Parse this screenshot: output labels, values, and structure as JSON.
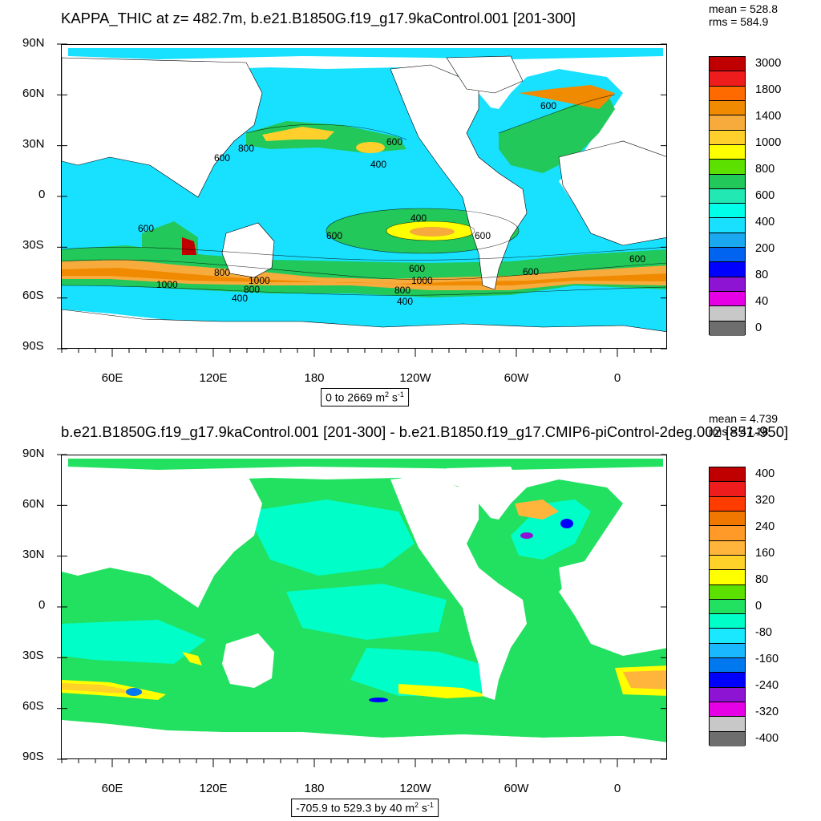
{
  "panels": [
    {
      "title": "KAPPA_THIC at z= 482.7m, b.e21.B1850G.f19_g17.9kaControl.001 [201-300]",
      "stats": [
        "mean = 528.8",
        "rms = 584.9"
      ],
      "range": {
        "text": "0 to 2669 m",
        "sup1": "2",
        "mid": " s",
        "sup2": "-1"
      },
      "colorbar": {
        "labels": [
          "3000",
          "1800",
          "1400",
          "1000",
          "800",
          "600",
          "400",
          "200",
          "80",
          "40",
          "0"
        ],
        "colors": [
          "#c00000",
          "#ee1c1c",
          "#ff6a00",
          "#f08a00",
          "#f7ab3c",
          "#ffd02c",
          "#ffff00",
          "#5ce000",
          "#22c85a",
          "#22e8b4",
          "#00ffe8",
          "#1ae0ff",
          "#1aa8f0",
          "#0064f0",
          "#0000ff",
          "#8c14d2",
          "#e600e6",
          "#c8c8c8",
          "#6e6e6e"
        ]
      },
      "contour_labels": [
        "800",
        "600",
        "400",
        "600",
        "600",
        "400",
        "600",
        "800",
        "1000",
        "800",
        "600",
        "1000",
        "800",
        "600",
        "400",
        "400",
        "1000",
        "600",
        "600",
        "600"
      ],
      "background_class": "#18e0ff"
    },
    {
      "title": "b.e21.B1850G.f19_g17.9kaControl.001 [201-300] - b.e21.B1850.f19_g17.CMIP6-piControl-2deg.002 [851-950]",
      "stats": [
        "mean = 4.739",
        "rms = 47.18"
      ],
      "range": {
        "text": "-705.9 to 529.3 by 40 m",
        "sup1": "2",
        "mid": " s",
        "sup2": "-1"
      },
      "colorbar": {
        "labels": [
          "400",
          "320",
          "240",
          "160",
          "80",
          "0",
          "-80",
          "-160",
          "-240",
          "-320",
          "-400"
        ],
        "colors": [
          "#c00000",
          "#ee1c1c",
          "#ff3c00",
          "#f07800",
          "#ff9a28",
          "#ffb43c",
          "#ffd22a",
          "#ffff00",
          "#5ce000",
          "#22e060",
          "#00ffc8",
          "#1ae8ff",
          "#1ab8ff",
          "#0078f0",
          "#0000ff",
          "#8c14d2",
          "#e600e6",
          "#c8c8c8",
          "#6e6e6e"
        ]
      },
      "background_class": "#22e060"
    }
  ],
  "axes": {
    "y_labels": [
      "90N",
      "60N",
      "30N",
      "0",
      "30S",
      "60S",
      "90S"
    ],
    "x_labels": [
      "60E",
      "120E",
      "180",
      "120W",
      "60W",
      "0"
    ]
  }
}
